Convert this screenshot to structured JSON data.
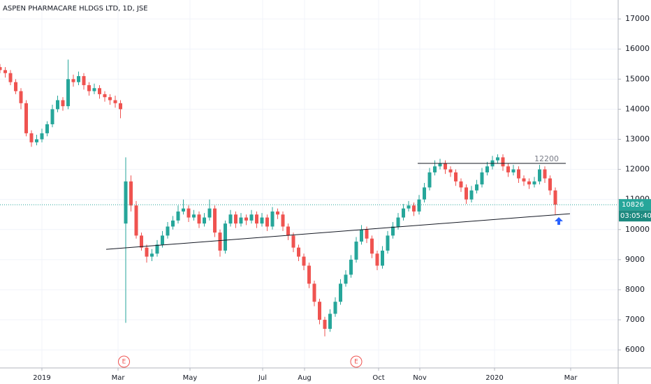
{
  "chart_data": {
    "type": "candlestick",
    "title": "ASPEN PHARMACARE HLDGS LTD, 1D, JSE",
    "up_color": "#26a69a",
    "down_color": "#ef5350",
    "grid": true,
    "xlim": [
      0,
      354
    ],
    "ylim": [
      5400,
      17630
    ],
    "yticks": [
      6000,
      7000,
      8000,
      9000,
      10000,
      11000,
      12000,
      13000,
      14000,
      15000,
      16000,
      17000
    ],
    "xticks": [
      {
        "value": 24,
        "label": "2019"
      },
      {
        "value": 67.6,
        "label": "Mar"
      },
      {
        "value": 108.8,
        "label": "May"
      },
      {
        "value": 150.4,
        "label": "Jul"
      },
      {
        "value": 174.4,
        "label": "Aug"
      },
      {
        "value": 216.8,
        "label": "Oct"
      },
      {
        "value": 240.4,
        "label": "Nov"
      },
      {
        "value": 283.2,
        "label": "2020"
      },
      {
        "value": 326.8,
        "label": "Mar"
      }
    ],
    "x": [
      0,
      3,
      6,
      9,
      12,
      15,
      18,
      21,
      24,
      27,
      30,
      33,
      36,
      39,
      42,
      45,
      48,
      51,
      54,
      57,
      60,
      63,
      66,
      69,
      72,
      75,
      78,
      81,
      84,
      87,
      90,
      93,
      96,
      99,
      102,
      105,
      108,
      111,
      114,
      117,
      120,
      123,
      126,
      129,
      132,
      135,
      138,
      141,
      144,
      147,
      150,
      153,
      156,
      159,
      162,
      165,
      168,
      171,
      174,
      177,
      180,
      183,
      186,
      189,
      192,
      195,
      198,
      201,
      204,
      207,
      210,
      213,
      216,
      219,
      222,
      225,
      228,
      231,
      234,
      237,
      240,
      243,
      246,
      249,
      252,
      255,
      258,
      261,
      264,
      267,
      270,
      273,
      276,
      279,
      282,
      285,
      288,
      291,
      294,
      297,
      300,
      303,
      306,
      309,
      312,
      315,
      318
    ],
    "ohlc": [
      [
        15400,
        15500,
        15200,
        15300
      ],
      [
        15300,
        15400,
        15050,
        15200
      ],
      [
        15200,
        15300,
        14800,
        14900
      ],
      [
        14900,
        15000,
        14500,
        14600
      ],
      [
        14600,
        14700,
        14000,
        14200
      ],
      [
        14200,
        14300,
        13100,
        13200
      ],
      [
        13200,
        13300,
        12750,
        12900
      ],
      [
        12900,
        13150,
        12800,
        13000
      ],
      [
        13000,
        13350,
        12900,
        13200
      ],
      [
        13200,
        13600,
        13100,
        13500
      ],
      [
        13500,
        14150,
        13400,
        14000
      ],
      [
        14000,
        14450,
        13900,
        14300
      ],
      [
        14300,
        14400,
        13950,
        14100
      ],
      [
        14100,
        15650,
        14000,
        15000
      ],
      [
        15000,
        15150,
        14750,
        14900
      ],
      [
        14900,
        15250,
        14800,
        15100
      ],
      [
        15100,
        15200,
        14650,
        14800
      ],
      [
        14800,
        14900,
        14450,
        14600
      ],
      [
        14600,
        14850,
        14500,
        14700
      ],
      [
        14700,
        14800,
        14350,
        14500
      ],
      [
        14500,
        14600,
        14250,
        14400
      ],
      [
        14400,
        14500,
        14150,
        14300
      ],
      [
        14300,
        14450,
        14050,
        14200
      ],
      [
        14200,
        14300,
        13700,
        14000
      ],
      [
        10200,
        12400,
        6900,
        11600
      ],
      [
        11600,
        11800,
        10600,
        10800
      ],
      [
        10800,
        10950,
        9700,
        9800
      ],
      [
        9800,
        9900,
        9300,
        9400
      ],
      [
        9400,
        9500,
        8900,
        9100
      ],
      [
        9100,
        9350,
        8950,
        9200
      ],
      [
        9200,
        9650,
        9100,
        9500
      ],
      [
        9500,
        9950,
        9400,
        9800
      ],
      [
        9800,
        10250,
        9700,
        10100
      ],
      [
        10100,
        10450,
        10000,
        10300
      ],
      [
        10300,
        10800,
        10200,
        10600
      ],
      [
        10600,
        11000,
        10500,
        10700
      ],
      [
        10700,
        10800,
        10250,
        10400
      ],
      [
        10400,
        10650,
        10300,
        10500
      ],
      [
        10500,
        10600,
        10050,
        10200
      ],
      [
        10200,
        10550,
        10100,
        10400
      ],
      [
        10400,
        11000,
        10300,
        10700
      ],
      [
        10700,
        10800,
        9750,
        9900
      ],
      [
        9900,
        10000,
        9100,
        9300
      ],
      [
        9300,
        10300,
        9200,
        10200
      ],
      [
        10200,
        10650,
        10100,
        10500
      ],
      [
        10500,
        10600,
        10050,
        10200
      ],
      [
        10200,
        10550,
        10100,
        10400
      ],
      [
        10400,
        10500,
        10150,
        10300
      ],
      [
        10300,
        10650,
        10200,
        10500
      ],
      [
        10500,
        10600,
        10050,
        10200
      ],
      [
        10200,
        10550,
        10100,
        10400
      ],
      [
        10400,
        10500,
        9950,
        10100
      ],
      [
        10100,
        10750,
        10000,
        10600
      ],
      [
        10600,
        10700,
        10350,
        10500
      ],
      [
        10500,
        10600,
        9950,
        10100
      ],
      [
        10100,
        10200,
        9650,
        9800
      ],
      [
        9800,
        9900,
        9250,
        9400
      ],
      [
        9400,
        9500,
        8950,
        9100
      ],
      [
        9100,
        9200,
        8650,
        8800
      ],
      [
        8800,
        8900,
        8050,
        8200
      ],
      [
        8200,
        8300,
        7450,
        7600
      ],
      [
        7600,
        7700,
        6850,
        7000
      ],
      [
        7000,
        7100,
        6450,
        6700
      ],
      [
        6700,
        7350,
        6600,
        7200
      ],
      [
        7200,
        7750,
        7100,
        7600
      ],
      [
        7600,
        8350,
        7500,
        8200
      ],
      [
        8200,
        8650,
        8100,
        8500
      ],
      [
        8500,
        9150,
        8400,
        9000
      ],
      [
        9000,
        9750,
        8900,
        9600
      ],
      [
        9600,
        10150,
        9500,
        10000
      ],
      [
        10000,
        10100,
        9550,
        9700
      ],
      [
        9700,
        9800,
        9050,
        9200
      ],
      [
        9200,
        9300,
        8650,
        8800
      ],
      [
        8800,
        9450,
        8700,
        9300
      ],
      [
        9300,
        9950,
        9200,
        9800
      ],
      [
        9800,
        10250,
        9700,
        10100
      ],
      [
        10100,
        10550,
        10000,
        10400
      ],
      [
        10400,
        10850,
        10300,
        10700
      ],
      [
        10700,
        10950,
        10600,
        10800
      ],
      [
        10800,
        10900,
        10450,
        10600
      ],
      [
        10600,
        11150,
        10500,
        11000
      ],
      [
        11000,
        11550,
        10900,
        11400
      ],
      [
        11400,
        12050,
        11300,
        11900
      ],
      [
        11900,
        12300,
        11800,
        12100
      ],
      [
        12100,
        12350,
        12000,
        12200
      ],
      [
        12200,
        12300,
        11850,
        12000
      ],
      [
        12000,
        12100,
        11750,
        11900
      ],
      [
        11900,
        12000,
        11450,
        11600
      ],
      [
        11600,
        11700,
        11250,
        11400
      ],
      [
        11400,
        11500,
        10850,
        11000
      ],
      [
        11000,
        11450,
        10900,
        11300
      ],
      [
        11300,
        11650,
        11200,
        11500
      ],
      [
        11500,
        12050,
        11400,
        11900
      ],
      [
        11900,
        12250,
        11800,
        12100
      ],
      [
        12100,
        12450,
        12000,
        12300
      ],
      [
        12300,
        12500,
        12200,
        12400
      ],
      [
        12400,
        12500,
        11950,
        12100
      ],
      [
        12100,
        12200,
        11750,
        11900
      ],
      [
        11900,
        12150,
        11800,
        12000
      ],
      [
        12000,
        12100,
        11550,
        11700
      ],
      [
        11700,
        11800,
        11450,
        11600
      ],
      [
        11600,
        11700,
        11350,
        11500
      ],
      [
        11500,
        11750,
        11400,
        11600
      ],
      [
        11600,
        12150,
        11500,
        12000
      ],
      [
        12000,
        12100,
        11550,
        11700
      ],
      [
        11700,
        11800,
        11150,
        11300
      ],
      [
        11300,
        11400,
        10500,
        10826
      ]
    ],
    "level": {
      "value": 12200,
      "x": [
        239.2,
        324
      ]
    },
    "trendline": {
      "x": [
        60.8,
        326.4
      ],
      "y": [
        9343,
        10527
      ]
    },
    "countdown": "03:05:40",
    "events": [
      {
        "x": 71,
        "label": "E"
      },
      {
        "x": 204,
        "label": "E"
      }
    ]
  }
}
